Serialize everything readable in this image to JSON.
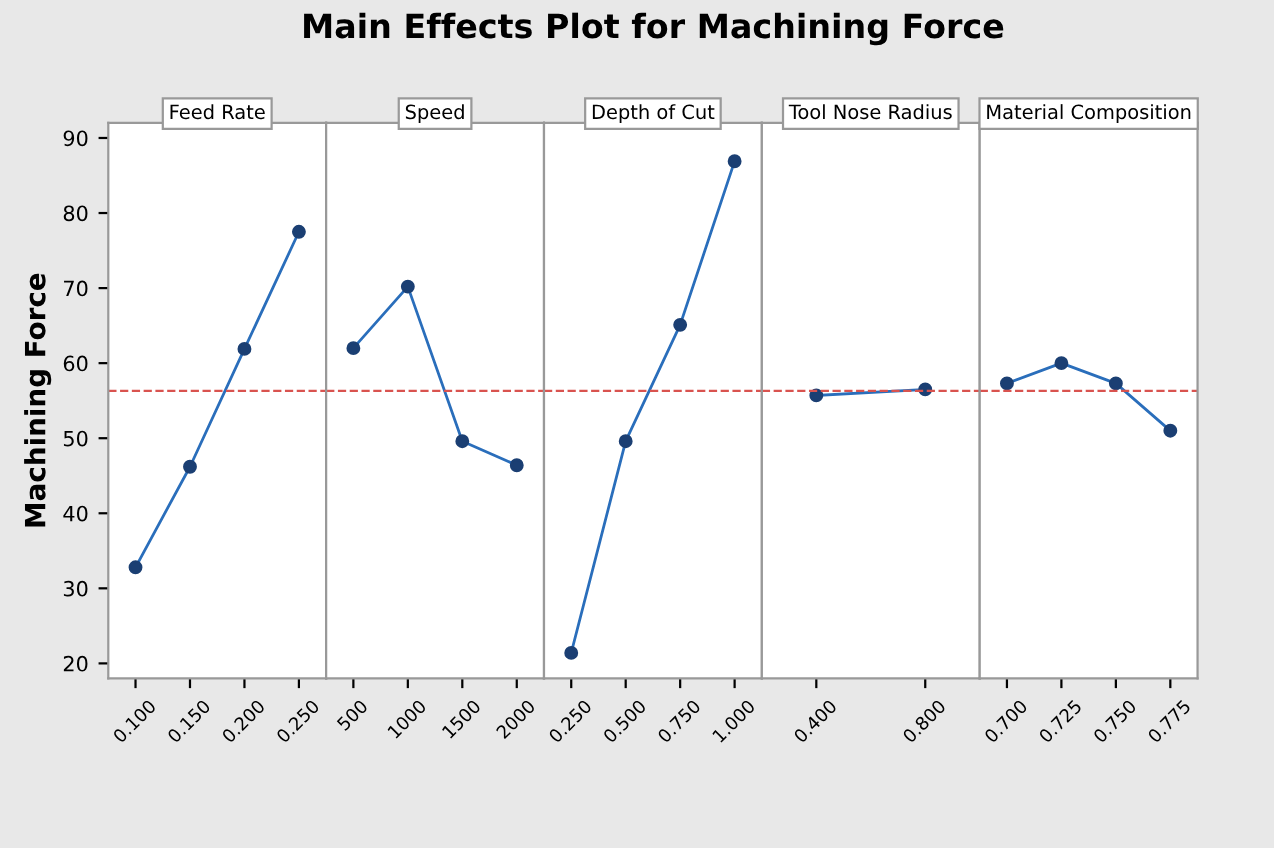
{
  "chart_data": [
    {
      "type": "line",
      "subtitle": "Feed Rate",
      "ylabel": "Machining Force",
      "categories": [
        "0.100",
        "0.150",
        "0.200",
        "0.250"
      ],
      "series": [
        {
          "color": "#2a6ebb",
          "values": [
            32.8,
            46.2,
            61.9,
            77.5
          ]
        }
      ],
      "marker": "circle",
      "line_style": "solid",
      "ylim": [
        18,
        92
      ],
      "yticks": [
        20,
        30,
        40,
        50,
        60,
        70,
        80,
        90
      ],
      "ref_lines": [
        {
          "axis": "y",
          "value": 56.3,
          "color": "#d9534f",
          "line_style": "dashed"
        }
      ]
    },
    {
      "type": "line",
      "subtitle": "Speed",
      "categories": [
        "500",
        "1000",
        "1500",
        "2000"
      ],
      "series": [
        {
          "color": "#2a6ebb",
          "values": [
            62,
            70.2,
            49.6,
            46.4
          ]
        }
      ],
      "marker": "circle",
      "line_style": "solid",
      "ylim": [
        18,
        92
      ],
      "yticks": [
        20,
        30,
        40,
        50,
        60,
        70,
        80,
        90
      ],
      "tick_labels": "x",
      "ref_lines": [
        {
          "axis": "y",
          "value": 56.3,
          "color": "#d9534f",
          "line_style": "dashed"
        }
      ]
    },
    {
      "type": "line",
      "title": "Main Effects Plot for Machining Force",
      "subtitle": "Depth of Cut",
      "categories": [
        "0.250",
        "0.500",
        "0.750",
        "1.000"
      ],
      "series": [
        {
          "color": "#2a6ebb",
          "values": [
            21.4,
            49.6,
            65.1,
            86.9
          ]
        }
      ],
      "marker": "circle",
      "line_style": "solid",
      "ylim": [
        18,
        92
      ],
      "yticks": [
        20,
        30,
        40,
        50,
        60,
        70,
        80,
        90
      ],
      "tick_labels": "x",
      "ref_lines": [
        {
          "axis": "y",
          "value": 56.3,
          "color": "#d9534f",
          "line_style": "dashed"
        }
      ]
    },
    {
      "type": "line",
      "subtitle": "Tool Nose Radius",
      "categories": [
        "0.400",
        "0.800"
      ],
      "series": [
        {
          "color": "#2a6ebb",
          "values": [
            55.7,
            56.5
          ]
        }
      ],
      "marker": "circle",
      "line_style": "solid",
      "ylim": [
        18,
        92
      ],
      "yticks": [
        20,
        30,
        40,
        50,
        60,
        70,
        80,
        90
      ],
      "tick_labels": "x",
      "ref_lines": [
        {
          "axis": "y",
          "value": 56.3,
          "color": "#d9534f",
          "line_style": "dashed"
        }
      ]
    },
    {
      "type": "line",
      "subtitle": "Material Composition",
      "categories": [
        "0.700",
        "0.725",
        "0.750",
        "0.775"
      ],
      "series": [
        {
          "color": "#2a6ebb",
          "values": [
            57.3,
            60.0,
            57.3,
            51.0
          ]
        }
      ],
      "marker": "circle",
      "line_style": "solid",
      "ylim": [
        18,
        92
      ],
      "yticks": [
        20,
        30,
        40,
        50,
        60,
        70,
        80,
        90
      ],
      "tick_labels": "x",
      "ref_lines": [
        {
          "axis": "y",
          "value": 56.3,
          "color": "#d9534f",
          "line_style": "dashed"
        }
      ]
    }
  ]
}
